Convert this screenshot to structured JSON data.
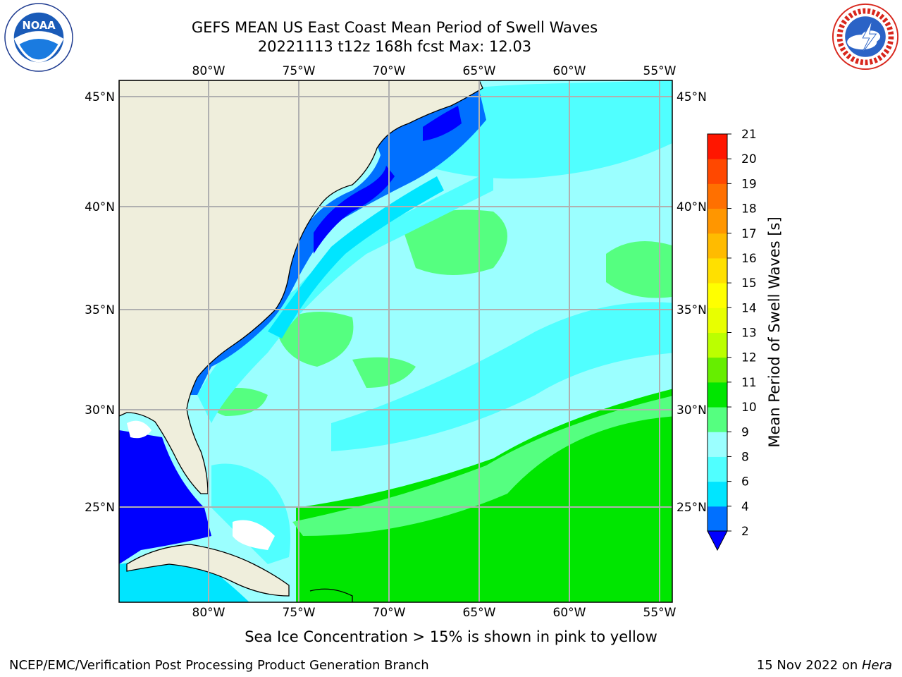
{
  "header": {
    "title_line1": "GEFS MEAN US East Coast Mean Period of Swell Waves",
    "title_line2": "20221113 t12z 168h fcst   Max: 12.03"
  },
  "logos": {
    "left": {
      "icon": "noaa-logo",
      "ring_text": "NATIONAL OCEANIC AND ATMOSPHERIC ADMINISTRATION · U.S. DEPARTMENT OF COMMERCE",
      "center_text": "NOAA"
    },
    "right": {
      "icon": "nws-logo",
      "ring_text": "NATIONAL WEATHER SERVICE"
    }
  },
  "map": {
    "lon_labels": [
      "80°W",
      "75°W",
      "70°W",
      "65°W",
      "60°W",
      "55°W"
    ],
    "lon_values": [
      -80,
      -75,
      -70,
      -65,
      -60,
      -55
    ],
    "lat_labels": [
      "45°N",
      "40°N",
      "35°N",
      "30°N",
      "25°N"
    ],
    "lat_values": [
      45,
      40,
      35,
      30,
      25
    ],
    "extent": {
      "lon_min": -84.3,
      "lon_max": -53.5,
      "lat_min": 20.3,
      "lat_max": 45.8
    },
    "colors": {
      "land": "#efeedc",
      "coast": "#000000",
      "grid": "#b0b0b0"
    }
  },
  "colorbar": {
    "label": "Mean Period of Swell Waves [s]",
    "ticks": [
      "2",
      "4",
      "6",
      "8",
      "9",
      "10",
      "11",
      "12",
      "13",
      "14",
      "15",
      "16",
      "17",
      "18",
      "19",
      "20",
      "21"
    ],
    "colors": [
      "#0070ff",
      "#00e5ff",
      "#50ffff",
      "#9bffff",
      "#55ff80",
      "#00e600",
      "#66ee00",
      "#bbff00",
      "#e8ff00",
      "#ffff00",
      "#ffe000",
      "#ffbb00",
      "#ff9600",
      "#ff7000",
      "#ff4800",
      "#ff1600"
    ],
    "under_color": "#0000ff",
    "extend": "min"
  },
  "footer": {
    "note": "Sea Ice Concentration > 15% is shown in pink to yellow",
    "credit": "NCEP/EMC/Verification Post Processing Product Generation Branch",
    "date": "15 Nov 2022 on ",
    "machine": "Hera"
  }
}
